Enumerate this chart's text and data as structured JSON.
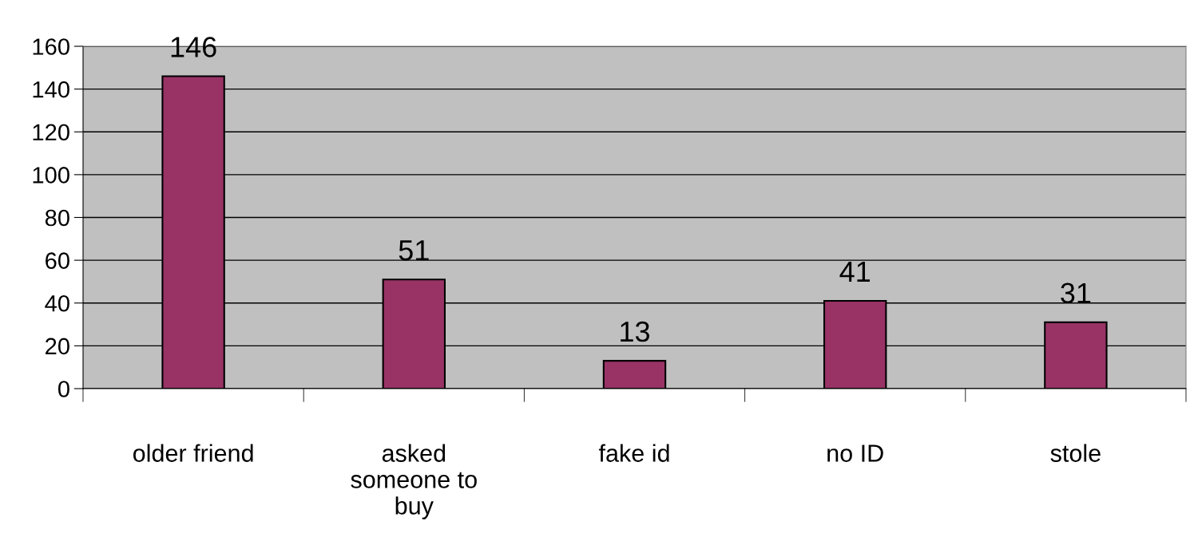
{
  "chart_data": {
    "type": "bar",
    "categories": [
      "older friend",
      "asked\nsomeone to\nbuy",
      "fake id",
      "no ID",
      "stole"
    ],
    "values": [
      146,
      51,
      13,
      41,
      31
    ],
    "color": "#993366",
    "ylim": [
      0,
      160
    ],
    "yticks": [
      0,
      20,
      40,
      60,
      80,
      100,
      120,
      140,
      160
    ],
    "grid": "y",
    "data_labels": true
  }
}
